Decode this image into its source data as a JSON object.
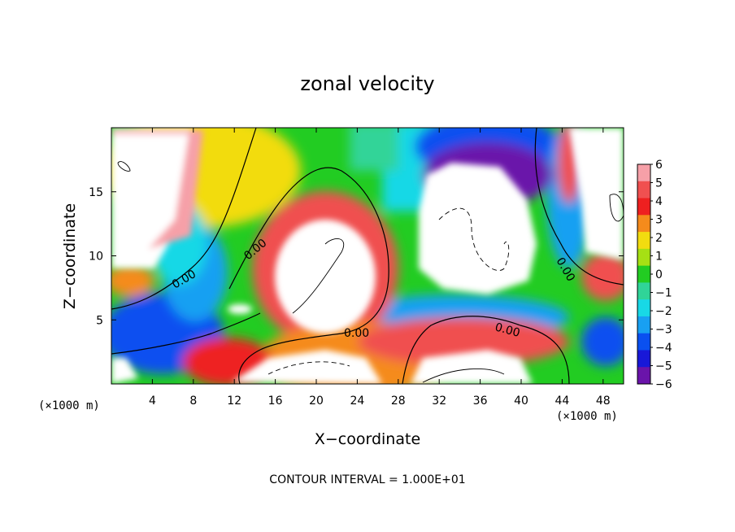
{
  "chart_data": {
    "type": "heatmap",
    "title": "zonal velocity",
    "xlabel": "X−coordinate",
    "ylabel": "Z−coordinate",
    "x_unit_left": "(×1000 m)",
    "x_unit_right": "(×1000 m)",
    "xlim": [
      0,
      50
    ],
    "ylim": [
      0,
      20
    ],
    "x_ticks": [
      4,
      8,
      12,
      16,
      20,
      24,
      28,
      32,
      36,
      40,
      44,
      48
    ],
    "y_ticks": [
      5,
      10,
      15
    ],
    "colorbar": {
      "levels": [
        6,
        5,
        4,
        3,
        2,
        1,
        0,
        -1,
        -2,
        -3,
        -4,
        -5,
        -6
      ],
      "labels": [
        "6",
        "5",
        "4",
        "3",
        "2",
        "1",
        "0",
        "−1",
        "−2",
        "−3",
        "−4",
        "−5",
        "−6"
      ],
      "colors": [
        "#f6a0a8",
        "#f05050",
        "#ee2020",
        "#f58b1c",
        "#f2dc10",
        "#a6e014",
        "#22cc22",
        "#30d498",
        "#18d8e6",
        "#18a0f2",
        "#0a50f0",
        "#1818d8",
        "#6a14aa"
      ]
    },
    "contour_labels": [
      "0.00",
      "0.00",
      "0.00",
      "0.00",
      "0.00"
    ],
    "footer": "CONTOUR INTERVAL = 1.000E+01"
  }
}
